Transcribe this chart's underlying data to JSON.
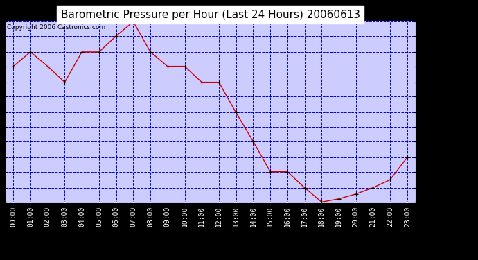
{
  "title": "Barometric Pressure per Hour (Last 24 Hours) 20060613",
  "copyright": "Copyright 2006 Castronics.com",
  "hours": [
    "00:00",
    "01:00",
    "02:00",
    "03:00",
    "04:00",
    "05:00",
    "06:00",
    "07:00",
    "08:00",
    "09:00",
    "10:00",
    "11:00",
    "12:00",
    "13:00",
    "14:00",
    "15:00",
    "16:00",
    "17:00",
    "18:00",
    "19:00",
    "20:00",
    "21:00",
    "22:00",
    "23:00"
  ],
  "pressure": [
    30.118,
    30.127,
    30.118,
    30.108,
    30.127,
    30.127,
    30.137,
    30.146,
    30.127,
    30.118,
    30.118,
    30.108,
    30.108,
    30.089,
    30.071,
    30.052,
    30.052,
    30.042,
    30.033,
    30.035,
    30.038,
    30.042,
    30.047,
    30.061
  ],
  "ylim_min": 30.033,
  "ylim_max": 30.146,
  "yticks": [
    30.033,
    30.042,
    30.052,
    30.061,
    30.071,
    30.08,
    30.089,
    30.099,
    30.108,
    30.118,
    30.127,
    30.137,
    30.146
  ],
  "line_color": "#cc0000",
  "marker_color": "#cc0000",
  "bg_color": "#000000",
  "plot_bg_color": "#ccccff",
  "grid_color": "#0000bb",
  "title_color": "#000000",
  "title_bg_color": "#ffffff",
  "title_fontsize": 11,
  "copyright_fontsize": 6.5,
  "tick_fontsize": 7
}
